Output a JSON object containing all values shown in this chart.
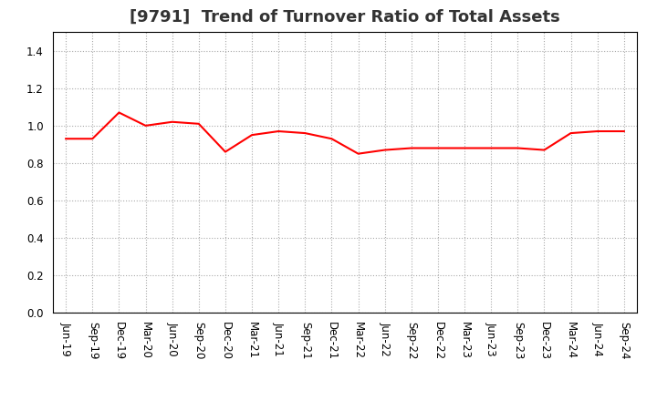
{
  "title": "[9791]  Trend of Turnover Ratio of Total Assets",
  "x_labels": [
    "Jun-19",
    "Sep-19",
    "Dec-19",
    "Mar-20",
    "Jun-20",
    "Sep-20",
    "Dec-20",
    "Mar-21",
    "Jun-21",
    "Sep-21",
    "Dec-21",
    "Mar-22",
    "Jun-22",
    "Sep-22",
    "Dec-22",
    "Mar-23",
    "Jun-23",
    "Sep-23",
    "Dec-23",
    "Mar-24",
    "Jun-24",
    "Sep-24"
  ],
  "y_values": [
    0.93,
    0.93,
    1.07,
    1.0,
    1.02,
    1.01,
    0.86,
    0.95,
    0.97,
    0.96,
    0.93,
    0.85,
    0.87,
    0.88,
    0.88,
    0.88,
    0.88,
    0.88,
    0.87,
    0.96,
    0.97,
    0.97
  ],
  "line_color": "#ff0000",
  "line_width": 1.5,
  "ylim": [
    0.0,
    1.5
  ],
  "yticks": [
    0.0,
    0.2,
    0.4,
    0.6,
    0.8,
    1.0,
    1.2,
    1.4
  ],
  "grid_color": "#aaaaaa",
  "grid_style": "dotted",
  "bg_color": "#ffffff",
  "title_fontsize": 13,
  "tick_fontsize": 8.5,
  "title_color": "#333333"
}
